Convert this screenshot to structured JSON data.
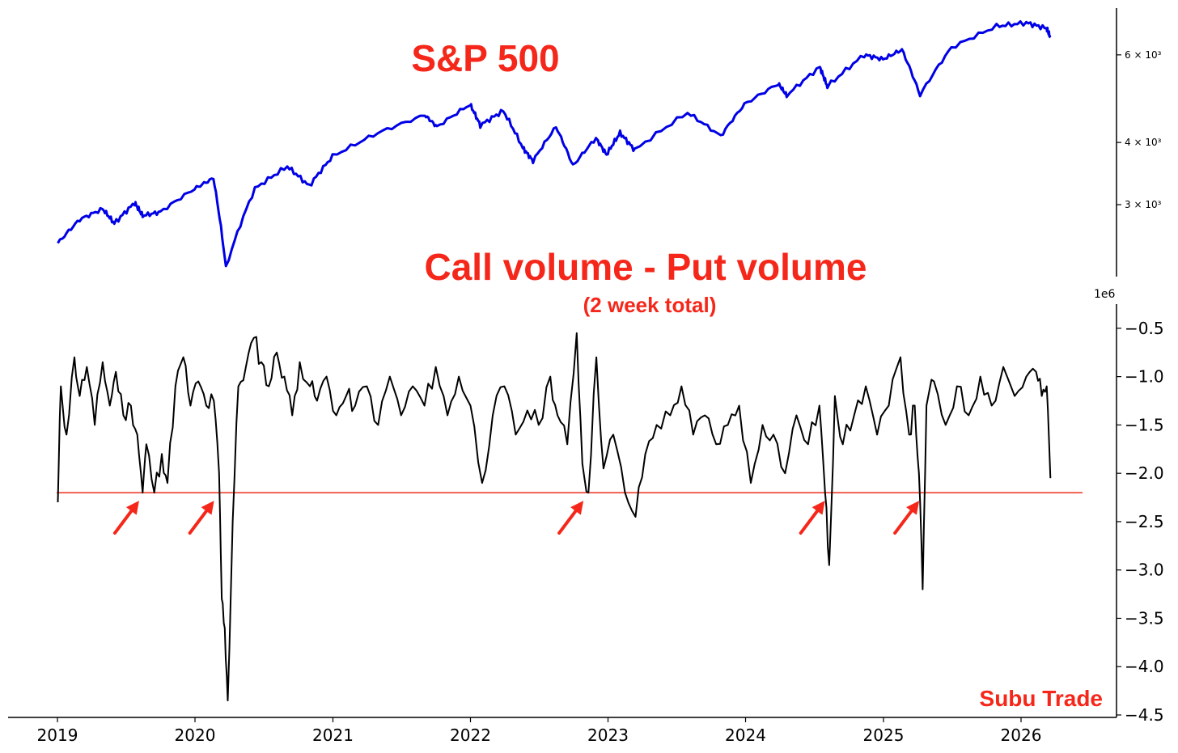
{
  "chart_data": [
    {
      "type": "line",
      "title": "S&P 500",
      "title_color": "#f5271a",
      "line_color": "#0000e6",
      "y_scale": "log",
      "ylim": [
        2150,
        7450
      ],
      "y_ticks": [
        {
          "value": 6000,
          "label": "6 × 10³"
        },
        {
          "value": 4000,
          "label": "4 × 10³"
        },
        {
          "value": 3000,
          "label": "3 × 10³"
        }
      ],
      "series": [
        {
          "x": [
            "2019-01-02",
            "2019-03-01",
            "2019-05-01",
            "2019-06-01",
            "2019-07-25",
            "2019-08-15",
            "2019-10-01",
            "2019-12-31",
            "2020-02-19",
            "2020-03-23",
            "2020-06-08",
            "2020-09-02",
            "2020-10-30",
            "2020-12-31",
            "2021-04-30",
            "2021-09-02",
            "2021-10-04",
            "2021-12-31",
            "2022-01-27",
            "2022-03-29",
            "2022-05-20",
            "2022-06-16",
            "2022-08-16",
            "2022-09-30",
            "2022-11-30",
            "2022-12-28",
            "2023-02-02",
            "2023-03-13",
            "2023-07-31",
            "2023-10-27",
            "2023-12-29",
            "2024-03-28",
            "2024-04-19",
            "2024-07-16",
            "2024-08-05",
            "2024-11-11",
            "2024-12-31",
            "2025-02-19",
            "2025-04-08",
            "2025-06-30",
            "2025-10-28",
            "2026-01-15",
            "2026-03-10",
            "2026-03-20"
          ],
          "y": [
            2510,
            2800,
            2940,
            2750,
            3025,
            2850,
            2900,
            3230,
            3390,
            2240,
            3230,
            3580,
            3270,
            3750,
            4180,
            4540,
            4300,
            4770,
            4330,
            4630,
            3900,
            3670,
            4300,
            3590,
            4080,
            3780,
            4180,
            3860,
            4590,
            4120,
            4770,
            5250,
            4970,
            5670,
            5180,
            6000,
            5880,
            6145,
            4980,
            6200,
            6850,
            6960,
            6780,
            6500
          ]
        }
      ]
    },
    {
      "type": "line",
      "title": "Call volume - Put volume",
      "subtitle": "(2 week total)",
      "title_color": "#f5271a",
      "line_color": "#000000",
      "y_offset_label": "1e6",
      "ylim": [
        -4.5,
        -0.25
      ],
      "y_ticks": [
        {
          "value": -0.5,
          "label": "−0.5"
        },
        {
          "value": -1.0,
          "label": "−1.0"
        },
        {
          "value": -1.5,
          "label": "−1.5"
        },
        {
          "value": -2.0,
          "label": "−2.0"
        },
        {
          "value": -2.5,
          "label": "−2.5"
        },
        {
          "value": -3.0,
          "label": "−3.0"
        },
        {
          "value": -3.5,
          "label": "−3.5"
        },
        {
          "value": -4.0,
          "label": "−4.0"
        },
        {
          "value": -4.5,
          "label": "−4.5"
        }
      ],
      "threshold": {
        "value": -2.2,
        "color": "#f0604f"
      },
      "arrow_dates": [
        "2019-08-10",
        "2020-02-25",
        "2022-11-01",
        "2024-08-03",
        "2025-04-10"
      ],
      "series": [
        {
          "x": [
            "2019-01-02",
            "2019-01-10",
            "2019-01-25",
            "2019-02-15",
            "2019-03-01",
            "2019-03-20",
            "2019-04-10",
            "2019-05-01",
            "2019-05-20",
            "2019-06-05",
            "2019-06-25",
            "2019-07-15",
            "2019-08-01",
            "2019-08-15",
            "2019-08-25",
            "2019-09-15",
            "2019-10-05",
            "2019-10-20",
            "2019-11-10",
            "2019-12-01",
            "2019-12-20",
            "2020-01-10",
            "2020-01-31",
            "2020-02-20",
            "2020-03-05",
            "2020-03-12",
            "2020-03-20",
            "2020-03-28",
            "2020-04-10",
            "2020-04-25",
            "2020-05-15",
            "2020-06-05",
            "2020-06-25",
            "2020-07-15",
            "2020-08-05",
            "2020-08-25",
            "2020-09-15",
            "2020-10-05",
            "2020-11-01",
            "2020-11-20",
            "2020-12-15",
            "2021-01-10",
            "2021-02-05",
            "2021-03-01",
            "2021-04-01",
            "2021-05-01",
            "2021-06-01",
            "2021-07-01",
            "2021-08-01",
            "2021-09-01",
            "2021-10-01",
            "2021-11-01",
            "2021-12-01",
            "2022-01-01",
            "2022-02-01",
            "2022-03-01",
            "2022-04-01",
            "2022-05-01",
            "2022-06-01",
            "2022-07-01",
            "2022-08-01",
            "2022-08-20",
            "2022-09-15",
            "2022-10-10",
            "2022-10-25",
            "2022-11-10",
            "2022-12-01",
            "2022-12-20",
            "2023-01-15",
            "2023-02-15",
            "2023-03-15",
            "2023-04-10",
            "2023-05-10",
            "2023-06-15",
            "2023-07-15",
            "2023-08-15",
            "2023-09-15",
            "2023-10-15",
            "2023-11-15",
            "2023-12-15",
            "2024-01-15",
            "2024-02-15",
            "2024-03-15",
            "2024-04-15",
            "2024-05-15",
            "2024-06-15",
            "2024-07-15",
            "2024-07-30",
            "2024-08-10",
            "2024-08-25",
            "2024-09-15",
            "2024-10-15",
            "2024-11-15",
            "2024-12-15",
            "2025-01-15",
            "2025-02-15",
            "2025-03-10",
            "2025-03-25",
            "2025-04-05",
            "2025-04-15",
            "2025-04-25",
            "2025-05-15",
            "2025-06-15",
            "2025-07-15",
            "2025-08-15",
            "2025-09-15",
            "2025-10-15",
            "2025-11-15",
            "2025-12-15",
            "2026-01-15",
            "2026-02-10",
            "2026-02-25",
            "2026-03-10",
            "2026-03-20"
          ],
          "y": [
            -2.3,
            -1.1,
            -1.6,
            -0.8,
            -1.2,
            -0.9,
            -1.5,
            -0.85,
            -1.3,
            -0.95,
            -1.4,
            -1.3,
            -1.6,
            -2.2,
            -1.7,
            -2.2,
            -1.8,
            -2.1,
            -1.1,
            -0.8,
            -1.3,
            -1.05,
            -1.3,
            -1.25,
            -2.0,
            -3.3,
            -3.6,
            -4.35,
            -2.5,
            -1.1,
            -0.9,
            -0.6,
            -0.85,
            -1.1,
            -0.75,
            -1.0,
            -1.4,
            -0.85,
            -1.1,
            -1.25,
            -1.0,
            -1.4,
            -1.2,
            -1.3,
            -1.1,
            -1.5,
            -1.0,
            -1.4,
            -1.1,
            -1.3,
            -0.9,
            -1.4,
            -1.0,
            -1.3,
            -2.1,
            -1.4,
            -1.1,
            -1.6,
            -1.35,
            -1.5,
            -1.0,
            -1.4,
            -1.7,
            -0.55,
            -1.9,
            -2.2,
            -0.8,
            -1.95,
            -1.6,
            -2.2,
            -2.45,
            -1.8,
            -1.5,
            -1.4,
            -1.1,
            -1.6,
            -1.4,
            -1.7,
            -1.5,
            -1.3,
            -2.1,
            -1.5,
            -1.6,
            -2.0,
            -1.4,
            -1.7,
            -1.3,
            -2.2,
            -2.95,
            -1.2,
            -1.7,
            -1.4,
            -1.1,
            -1.6,
            -1.3,
            -0.8,
            -1.6,
            -1.3,
            -2.0,
            -3.2,
            -1.3,
            -1.05,
            -1.5,
            -1.1,
            -1.4,
            -1.0,
            -1.3,
            -0.9,
            -1.2,
            -1.0,
            -0.95,
            -1.2,
            -1.1,
            -2.05
          ]
        }
      ]
    }
  ],
  "x_axis": {
    "start": "2019-01-01",
    "end": "2026-05-01",
    "ticks": [
      "2019",
      "2020",
      "2021",
      "2022",
      "2023",
      "2024",
      "2025",
      "2026"
    ]
  },
  "brand": {
    "label": "Subu Trade",
    "color": "#f5271a"
  }
}
